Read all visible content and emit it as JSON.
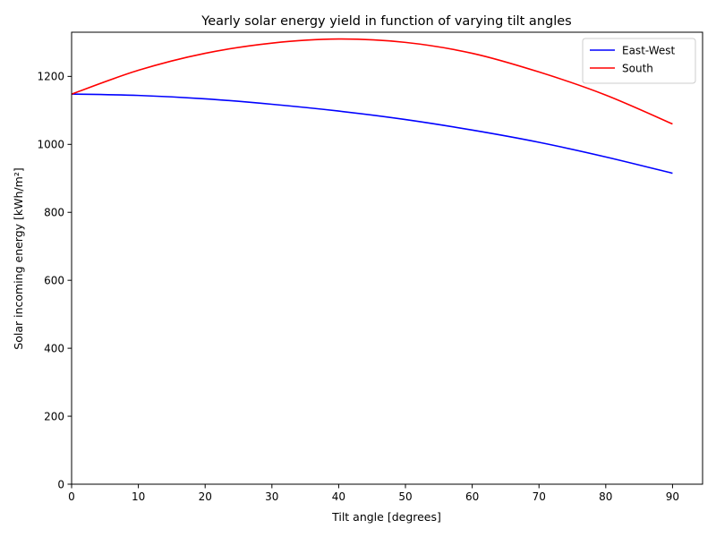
{
  "chart_data": {
    "type": "line",
    "title": "Yearly solar energy yield in function of varying tilt angles",
    "xlabel": "Tilt angle [degrees]",
    "ylabel": "Solar incoming energy [kWh/m²]",
    "xlim": [
      0,
      94.5
    ],
    "ylim": [
      0,
      1330
    ],
    "xticks": [
      0,
      10,
      20,
      30,
      40,
      50,
      60,
      70,
      80,
      90
    ],
    "yticks": [
      0,
      200,
      400,
      600,
      800,
      1000,
      1200
    ],
    "grid": false,
    "legend_position": "top-right",
    "x": [
      0,
      10,
      20,
      30,
      40,
      50,
      60,
      70,
      80,
      90
    ],
    "series": [
      {
        "name": "East-West",
        "color": "#0000ff",
        "values": [
          1148,
          1144,
          1134,
          1118,
          1098,
          1073,
          1042,
          1006,
          963,
          915
        ]
      },
      {
        "name": "South",
        "color": "#ff0000",
        "values": [
          1148,
          1218,
          1268,
          1298,
          1310,
          1300,
          1268,
          1213,
          1145,
          1060
        ]
      }
    ]
  }
}
